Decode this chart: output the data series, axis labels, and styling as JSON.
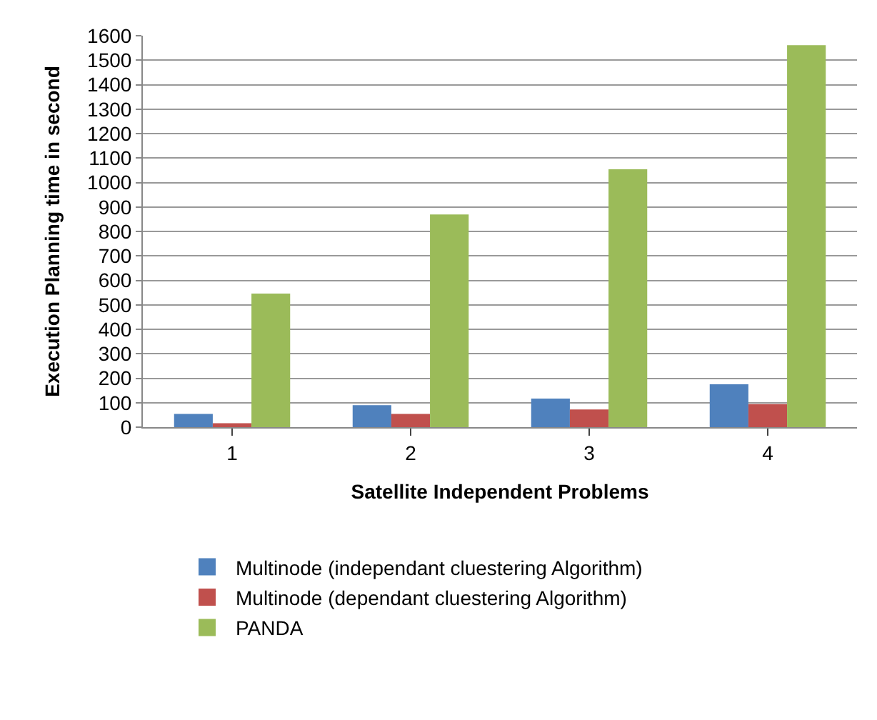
{
  "chart_data": {
    "type": "bar",
    "xlabel": "Satellite Independent Problems",
    "ylabel": "Execution Planning time in second",
    "categories": [
      "1",
      "2",
      "3",
      "4"
    ],
    "series": [
      {
        "name": "Multinode (independant cluestering Algorithm)",
        "color": "#4f81bd",
        "values": [
          54,
          90,
          117,
          175
        ]
      },
      {
        "name": "Multinode (dependant cluestering Algorithm)",
        "color": "#c0504d",
        "values": [
          16,
          54,
          72,
          94
        ]
      },
      {
        "name": "PANDA",
        "color": "#9bbb59",
        "values": [
          546,
          869,
          1054,
          1561
        ]
      }
    ],
    "ylim": [
      0,
      1600
    ],
    "yticks": [
      0,
      100,
      200,
      300,
      400,
      500,
      600,
      700,
      800,
      900,
      1000,
      1100,
      1200,
      1300,
      1400,
      1500,
      1600
    ],
    "grid": "y",
    "legend": "bottom"
  }
}
